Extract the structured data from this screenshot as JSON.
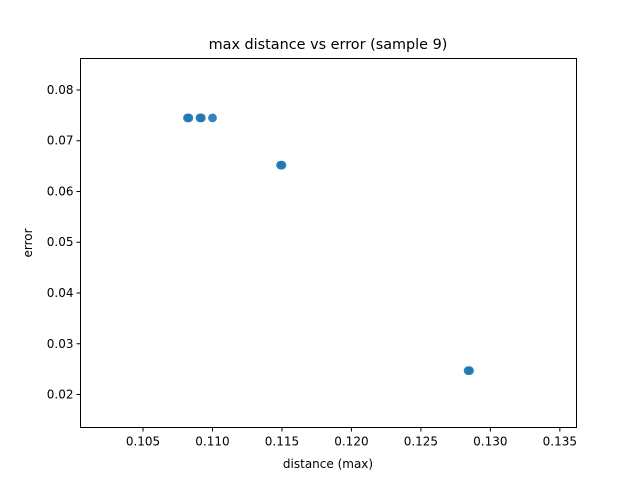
{
  "chart_data": {
    "type": "scatter",
    "title": "max distance vs error (sample 9)",
    "xlabel": "distance (max)",
    "ylabel": "error",
    "xlim": [
      0.1005,
      0.1362
    ],
    "ylim": [
      0.0135,
      0.0862
    ],
    "xticks": [
      0.105,
      0.11,
      0.115,
      0.12,
      0.125,
      0.13,
      0.135
    ],
    "xtick_labels": [
      "0.105",
      "0.110",
      "0.115",
      "0.120",
      "0.125",
      "0.130",
      "0.135"
    ],
    "yticks": [
      0.02,
      0.03,
      0.04,
      0.05,
      0.06,
      0.07,
      0.08
    ],
    "ytick_labels": [
      "0.02",
      "0.03",
      "0.04",
      "0.05",
      "0.06",
      "0.07",
      "0.08"
    ],
    "grid": false,
    "marker_color": "#1f77b4",
    "points": [
      {
        "x": 0.1082,
        "y": 0.0745
      },
      {
        "x": 0.1083,
        "y": 0.0745
      },
      {
        "x": 0.1091,
        "y": 0.0745
      },
      {
        "x": 0.1092,
        "y": 0.0745
      },
      {
        "x": 0.11,
        "y": 0.0745
      },
      {
        "x": 0.1149,
        "y": 0.0652
      },
      {
        "x": 0.115,
        "y": 0.0652
      },
      {
        "x": 0.1284,
        "y": 0.0247
      },
      {
        "x": 0.1285,
        "y": 0.0247
      }
    ]
  }
}
